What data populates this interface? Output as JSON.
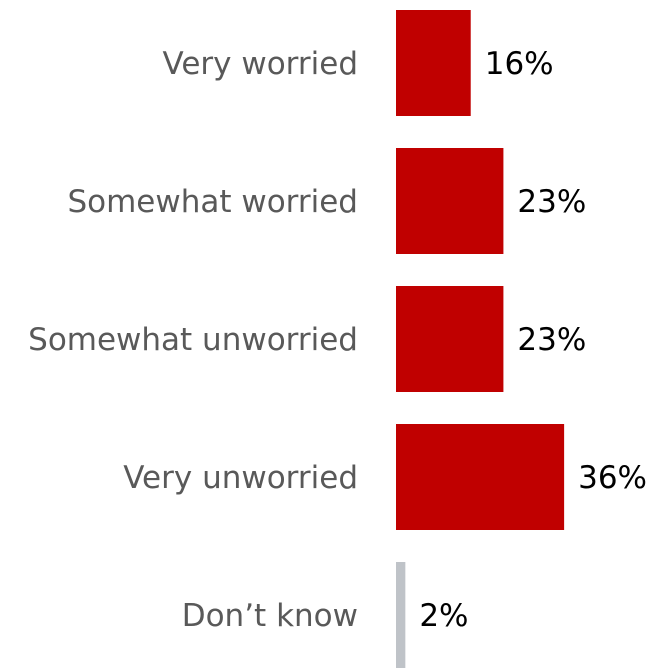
{
  "chart_data": {
    "type": "bar",
    "orientation": "horizontal",
    "categories": [
      "Very worried",
      "Somewhat worried",
      "Somewhat unworried",
      "Very unworried",
      "Don’t know"
    ],
    "values": [
      16,
      23,
      23,
      36,
      2
    ],
    "value_labels": [
      "16%",
      "23%",
      "23%",
      "36%",
      "2%"
    ],
    "unit": "%",
    "bar_colors": [
      "#c00000",
      "#c00000",
      "#c00000",
      "#c00000",
      "#bfc3c8"
    ],
    "title": "",
    "xlabel": "",
    "ylabel": "",
    "xlim": [
      0,
      36
    ],
    "grid": false,
    "legend": "none"
  }
}
